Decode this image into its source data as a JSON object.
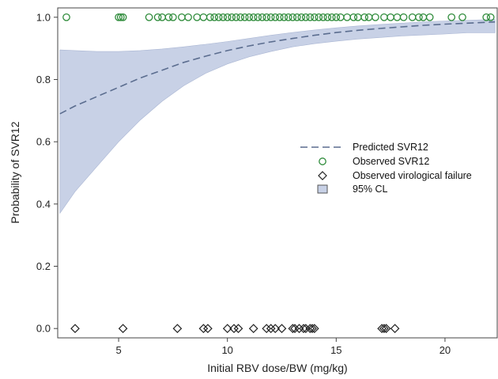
{
  "chart_data": {
    "type": "scatter",
    "xlabel": "Initial RBV dose/BW (mg/kg)",
    "ylabel": "Probability of SVR12",
    "xlim": [
      2.2,
      22.4
    ],
    "ylim": [
      -0.03,
      1.03
    ],
    "x_ticks": [
      "5",
      "10",
      "15",
      "20"
    ],
    "x_tick_values": [
      5,
      10,
      15,
      20
    ],
    "y_ticks": [
      "0.0",
      "0.2",
      "0.4",
      "0.6",
      "0.8",
      "1.0"
    ],
    "y_tick_values": [
      0,
      0.2,
      0.4,
      0.6,
      0.8,
      1.0
    ],
    "grid": false,
    "legend_position": "center-right",
    "colors": {
      "predicted": "#5b6d8f",
      "observed_svr": "#2e8b3a",
      "failure": "#222222",
      "band": "#c8d1e6",
      "band_edge": "#aab6d3"
    },
    "legend": {
      "predicted": "Predicted SVR12",
      "observed_svr": "Observed SVR12",
      "failure": "Observed virological failure",
      "ci": "95% CL"
    },
    "predicted": {
      "x": [
        2.3,
        3,
        4,
        5,
        6,
        7,
        8,
        9,
        10,
        11,
        12,
        13,
        14,
        15,
        16,
        17,
        18,
        19,
        20,
        21,
        22.3
      ],
      "y": [
        0.69,
        0.715,
        0.745,
        0.775,
        0.805,
        0.83,
        0.855,
        0.875,
        0.893,
        0.908,
        0.921,
        0.932,
        0.942,
        0.951,
        0.958,
        0.964,
        0.969,
        0.974,
        0.978,
        0.981,
        0.985
      ]
    },
    "ci_band": {
      "x": [
        2.3,
        3,
        4,
        5,
        6,
        7,
        8,
        9,
        10,
        11,
        12,
        13,
        14,
        15,
        16,
        17,
        18,
        19,
        20,
        21,
        22.3
      ],
      "lower": [
        0.37,
        0.44,
        0.52,
        0.6,
        0.67,
        0.73,
        0.78,
        0.82,
        0.85,
        0.873,
        0.89,
        0.905,
        0.915,
        0.923,
        0.93,
        0.935,
        0.94,
        0.943,
        0.946,
        0.95,
        0.95
      ],
      "upper": [
        0.895,
        0.893,
        0.89,
        0.89,
        0.893,
        0.898,
        0.905,
        0.913,
        0.922,
        0.932,
        0.942,
        0.951,
        0.959,
        0.966,
        0.972,
        0.977,
        0.981,
        0.985,
        0.988,
        0.99,
        0.993
      ]
    },
    "observed_svr_x": [
      2.6,
      5.0,
      5.1,
      5.2,
      6.4,
      6.8,
      7.0,
      7.3,
      7.5,
      7.9,
      8.2,
      8.6,
      8.9,
      9.2,
      9.4,
      9.6,
      9.8,
      10.0,
      10.2,
      10.4,
      10.6,
      10.8,
      11.0,
      11.2,
      11.4,
      11.6,
      11.8,
      12.0,
      12.2,
      12.4,
      12.6,
      12.8,
      13.0,
      13.2,
      13.4,
      13.6,
      13.8,
      14.0,
      14.2,
      14.4,
      14.6,
      14.8,
      15.0,
      15.2,
      15.5,
      15.8,
      16.0,
      16.3,
      16.5,
      16.8,
      17.2,
      17.5,
      17.8,
      18.1,
      18.5,
      18.8,
      19.0,
      19.3,
      20.3,
      20.8,
      21.9,
      22.1
    ],
    "observed_failure_x": [
      3.0,
      5.2,
      7.7,
      8.9,
      9.1,
      10.0,
      10.3,
      10.5,
      11.2,
      11.8,
      12.0,
      12.2,
      12.5,
      13.0,
      13.1,
      13.3,
      13.5,
      13.6,
      13.8,
      13.9,
      14.0,
      17.1,
      17.2,
      17.3,
      17.7
    ]
  }
}
